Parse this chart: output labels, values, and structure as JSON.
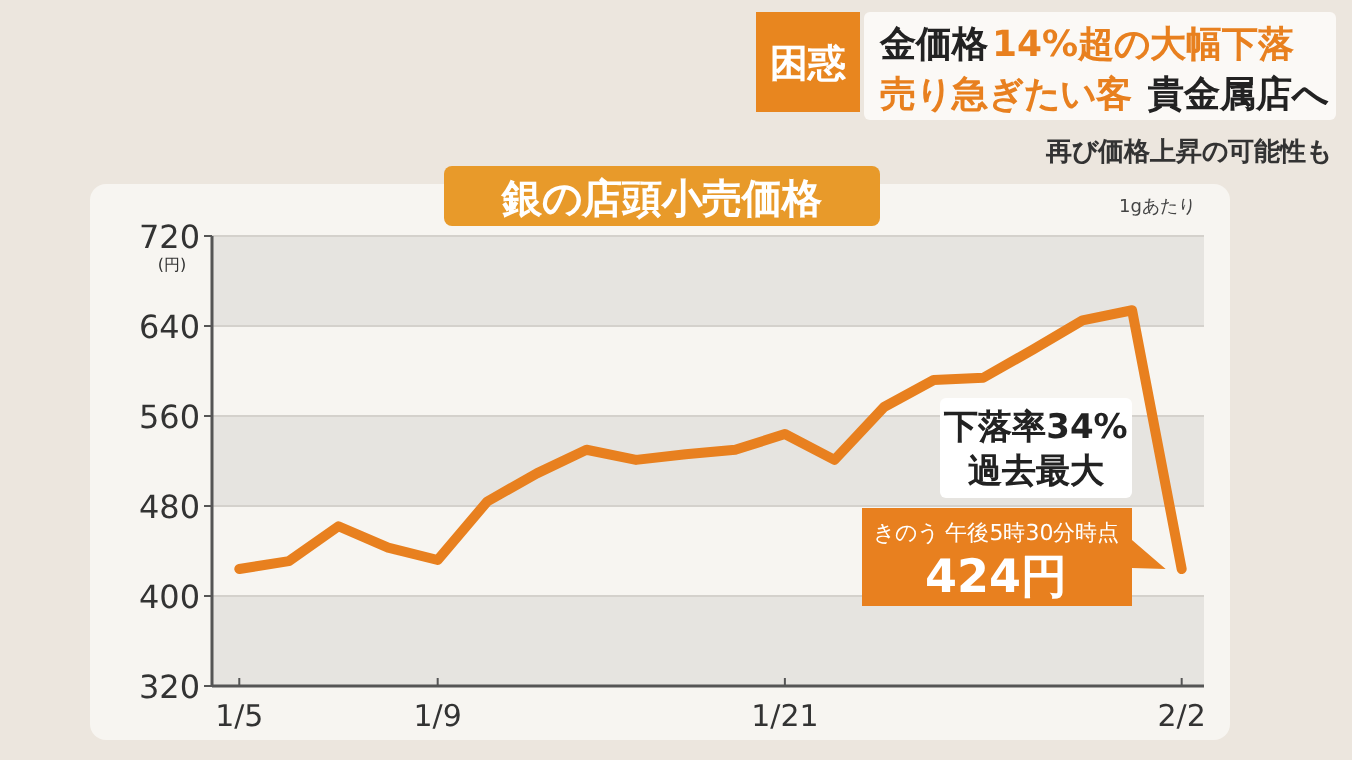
{
  "chart_data": {
    "type": "line",
    "title": "銀の店頭小売価格",
    "ylabel": "(円)",
    "categories": [
      "1/5",
      null,
      null,
      null,
      "1/9",
      null,
      null,
      null,
      null,
      null,
      null,
      "1/21",
      null,
      null,
      null,
      null,
      null,
      null,
      null,
      "2/2"
    ],
    "series": [
      {
        "color": "#e8801f",
        "values": [
          424,
          431,
          462,
          443,
          432,
          484,
          509,
          530,
          521,
          526,
          530,
          544,
          521,
          568,
          592,
          594,
          619,
          645,
          654,
          424
        ]
      }
    ],
    "ylim": [
      320,
      720
    ],
    "yticks": [
      320,
      400,
      480,
      560,
      640,
      720
    ],
    "grid": "y",
    "line_style": "solid",
    "annotations": [
      "困惑",
      "金価格",
      "14%超の大幅下落",
      "売り急ぎたい客",
      "貴金属店へ",
      "再び価格上昇の可能性も",
      "1gあたり",
      "下落率34%\n過去最大",
      {
        "text": "きのう 午後5時30分時点\n424円",
        "x": "2/2",
        "y": 424
      }
    ]
  }
}
